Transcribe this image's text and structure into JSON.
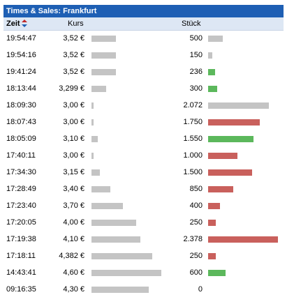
{
  "title": "Times & Sales: Frankfurt",
  "columns": {
    "time": "Zeit",
    "price": "Kurs",
    "qty": "Stück"
  },
  "colors": {
    "title_bg": "#1e5fb4",
    "header_bg": "#dde7f4",
    "neutral": "#c4c4c4",
    "up": "#5cb85c",
    "down": "#c9605c",
    "sort_up": "#c02a2a",
    "sort_down": "#1e5fb4"
  },
  "price_scale": [
    3.0,
    4.6
  ],
  "qty_scale_max": 2378,
  "trades": [
    {
      "time": "19:54:47",
      "price": "3,52 €",
      "price_value": 3.52,
      "qty": "500",
      "qty_value": 500,
      "tick": "neutral"
    },
    {
      "time": "19:54:16",
      "price": "3,52 €",
      "price_value": 3.52,
      "qty": "150",
      "qty_value": 150,
      "tick": "neutral"
    },
    {
      "time": "19:41:24",
      "price": "3,52 €",
      "price_value": 3.52,
      "qty": "236",
      "qty_value": 236,
      "tick": "up"
    },
    {
      "time": "18:13:44",
      "price": "3,299 €",
      "price_value": 3.299,
      "qty": "300",
      "qty_value": 300,
      "tick": "up"
    },
    {
      "time": "18:09:30",
      "price": "3,00 €",
      "price_value": 3.0,
      "qty": "2.072",
      "qty_value": 2072,
      "tick": "neutral"
    },
    {
      "time": "18:07:43",
      "price": "3,00 €",
      "price_value": 3.0,
      "qty": "1.750",
      "qty_value": 1750,
      "tick": "down"
    },
    {
      "time": "18:05:09",
      "price": "3,10 €",
      "price_value": 3.1,
      "qty": "1.550",
      "qty_value": 1550,
      "tick": "up"
    },
    {
      "time": "17:40:11",
      "price": "3,00 €",
      "price_value": 3.0,
      "qty": "1.000",
      "qty_value": 1000,
      "tick": "down"
    },
    {
      "time": "17:34:30",
      "price": "3,15 €",
      "price_value": 3.15,
      "qty": "1.500",
      "qty_value": 1500,
      "tick": "down"
    },
    {
      "time": "17:28:49",
      "price": "3,40 €",
      "price_value": 3.4,
      "qty": "850",
      "qty_value": 850,
      "tick": "down"
    },
    {
      "time": "17:23:40",
      "price": "3,70 €",
      "price_value": 3.7,
      "qty": "400",
      "qty_value": 400,
      "tick": "down"
    },
    {
      "time": "17:20:05",
      "price": "4,00 €",
      "price_value": 4.0,
      "qty": "250",
      "qty_value": 250,
      "tick": "down"
    },
    {
      "time": "17:19:38",
      "price": "4,10 €",
      "price_value": 4.1,
      "qty": "2.378",
      "qty_value": 2378,
      "tick": "down"
    },
    {
      "time": "17:18:11",
      "price": "4,382 €",
      "price_value": 4.382,
      "qty": "250",
      "qty_value": 250,
      "tick": "down"
    },
    {
      "time": "14:43:41",
      "price": "4,60 €",
      "price_value": 4.6,
      "qty": "600",
      "qty_value": 600,
      "tick": "up"
    },
    {
      "time": "09:16:35",
      "price": "4,30 €",
      "price_value": 4.3,
      "qty": "0",
      "qty_value": 0,
      "tick": "neutral"
    }
  ]
}
